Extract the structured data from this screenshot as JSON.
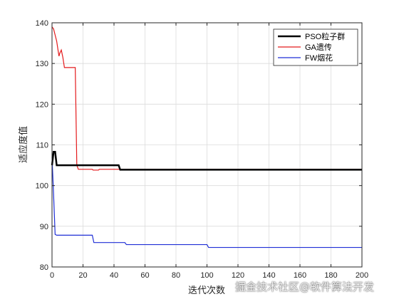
{
  "chart_data": {
    "type": "line",
    "xlabel": "迭代次数",
    "ylabel": "适应度值",
    "xlim": [
      0,
      200
    ],
    "ylim": [
      80,
      140
    ],
    "xticks": [
      0,
      20,
      40,
      60,
      80,
      100,
      120,
      140,
      160,
      180,
      200
    ],
    "yticks": [
      80,
      90,
      100,
      110,
      120,
      130,
      140
    ],
    "grid": true,
    "legend_position": "top-right",
    "series": [
      {
        "name": "PSO粒子群",
        "color": "#000000",
        "stroke_width": 2.5,
        "points": [
          [
            0,
            105
          ],
          [
            1,
            108.3
          ],
          [
            2,
            108.3
          ],
          [
            3,
            105
          ],
          [
            43,
            105
          ],
          [
            44,
            103.9
          ],
          [
            200,
            103.9
          ]
        ]
      },
      {
        "name": "GA遗传",
        "color": "#e41a1c",
        "stroke_width": 1.2,
        "points": [
          [
            0,
            139
          ],
          [
            1,
            138.5
          ],
          [
            2,
            137
          ],
          [
            3,
            135.5
          ],
          [
            4,
            133
          ],
          [
            4.5,
            131.8
          ],
          [
            5,
            132.5
          ],
          [
            6,
            133.3
          ],
          [
            7,
            131.5
          ],
          [
            8,
            129
          ],
          [
            15,
            129
          ],
          [
            16,
            105
          ],
          [
            17,
            104
          ],
          [
            26,
            104
          ],
          [
            26.5,
            103.8
          ],
          [
            30,
            103.8
          ],
          [
            30.5,
            104
          ],
          [
            200,
            104
          ]
        ]
      },
      {
        "name": "FW烟花",
        "color": "#1f2fd6",
        "stroke_width": 1.2,
        "points": [
          [
            0,
            107
          ],
          [
            1,
            98
          ],
          [
            2,
            88
          ],
          [
            3,
            87.8
          ],
          [
            26,
            87.8
          ],
          [
            27,
            86
          ],
          [
            47,
            86
          ],
          [
            48,
            85.5
          ],
          [
            100,
            85.5
          ],
          [
            101,
            84.8
          ],
          [
            200,
            84.8
          ]
        ]
      }
    ]
  },
  "watermark": "掘金技术社区@软件算法开发"
}
